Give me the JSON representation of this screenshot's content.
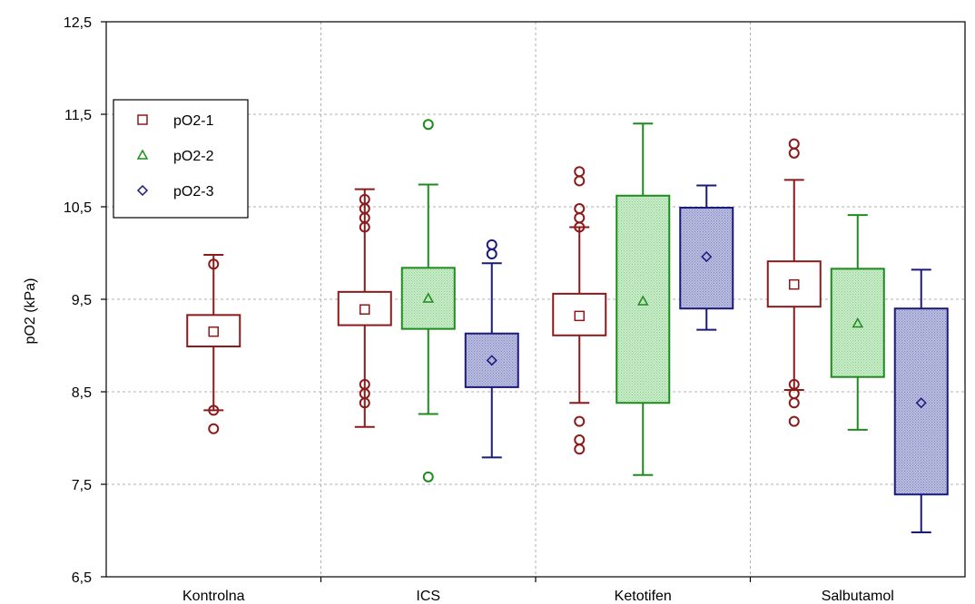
{
  "chart_data": {
    "type": "boxplot",
    "title": "",
    "xlabel": "",
    "ylabel": "pO2 (kPa)",
    "ylim": [
      6.5,
      12.5
    ],
    "yticks": [
      6.5,
      7.5,
      8.5,
      9.5,
      10.5,
      11.5,
      12.5
    ],
    "ytick_labels": [
      "6,5",
      "7,5",
      "8,5",
      "9,5",
      "10,5",
      "11,5",
      "12,5"
    ],
    "grid": true,
    "legend_position": "left",
    "categories": [
      "Kontrolna",
      "ICS",
      "Ketotifen",
      "Salbutamol"
    ],
    "series": [
      {
        "name": "pO2-1",
        "color": "#8b1a1a",
        "fill": "#ffffff",
        "marker": "square",
        "boxes": [
          {
            "category": "Kontrolna",
            "median": 9.15,
            "q1": 8.99,
            "q3": 9.33,
            "whisker_low": 8.3,
            "whisker_high": 9.98,
            "outliers": [
              8.1,
              8.3,
              9.88
            ]
          },
          {
            "category": "ICS",
            "median": 9.39,
            "q1": 9.22,
            "q3": 9.58,
            "whisker_low": 8.12,
            "whisker_high": 10.69,
            "outliers": [
              8.38,
              8.48,
              8.58,
              10.28,
              10.38,
              10.48,
              10.58
            ]
          },
          {
            "category": "Ketotifen",
            "median": 9.32,
            "q1": 9.11,
            "q3": 9.56,
            "whisker_low": 8.38,
            "whisker_high": 10.28,
            "outliers": [
              7.88,
              7.98,
              8.18,
              10.28,
              10.38,
              10.48,
              10.78,
              10.88
            ]
          },
          {
            "category": "Salbutamol",
            "median": 9.66,
            "q1": 9.42,
            "q3": 9.91,
            "whisker_low": 8.52,
            "whisker_high": 10.79,
            "outliers": [
              8.18,
              8.38,
              8.48,
              8.58,
              11.08,
              11.18
            ]
          }
        ]
      },
      {
        "name": "pO2-2",
        "color": "#1e8b1e",
        "fill": "#c9ecc9",
        "marker": "triangle",
        "boxes": [
          {
            "category": "ICS",
            "median": 9.51,
            "q1": 9.18,
            "q3": 9.84,
            "whisker_low": 8.26,
            "whisker_high": 10.74,
            "outliers": [
              7.58,
              11.39
            ]
          },
          {
            "category": "Ketotifen",
            "median": 9.48,
            "q1": 8.38,
            "q3": 10.62,
            "whisker_low": 7.6,
            "whisker_high": 11.4,
            "outliers": []
          },
          {
            "category": "Salbutamol",
            "median": 9.24,
            "q1": 8.66,
            "q3": 9.83,
            "whisker_low": 8.09,
            "whisker_high": 10.41,
            "outliers": []
          }
        ]
      },
      {
        "name": "pO2-3",
        "color": "#1a1a7a",
        "fill": "#b9bde0",
        "marker": "diamond",
        "boxes": [
          {
            "category": "ICS",
            "median": 8.84,
            "q1": 8.55,
            "q3": 9.13,
            "whisker_low": 7.79,
            "whisker_high": 9.89,
            "outliers": [
              9.99,
              10.09
            ]
          },
          {
            "category": "Ketotifen",
            "median": 9.96,
            "q1": 9.4,
            "q3": 10.49,
            "whisker_low": 9.17,
            "whisker_high": 10.73,
            "outliers": []
          },
          {
            "category": "Salbutamol",
            "median": 8.38,
            "q1": 7.39,
            "q3": 9.4,
            "whisker_low": 6.98,
            "whisker_high": 9.82,
            "outliers": []
          }
        ]
      }
    ]
  }
}
